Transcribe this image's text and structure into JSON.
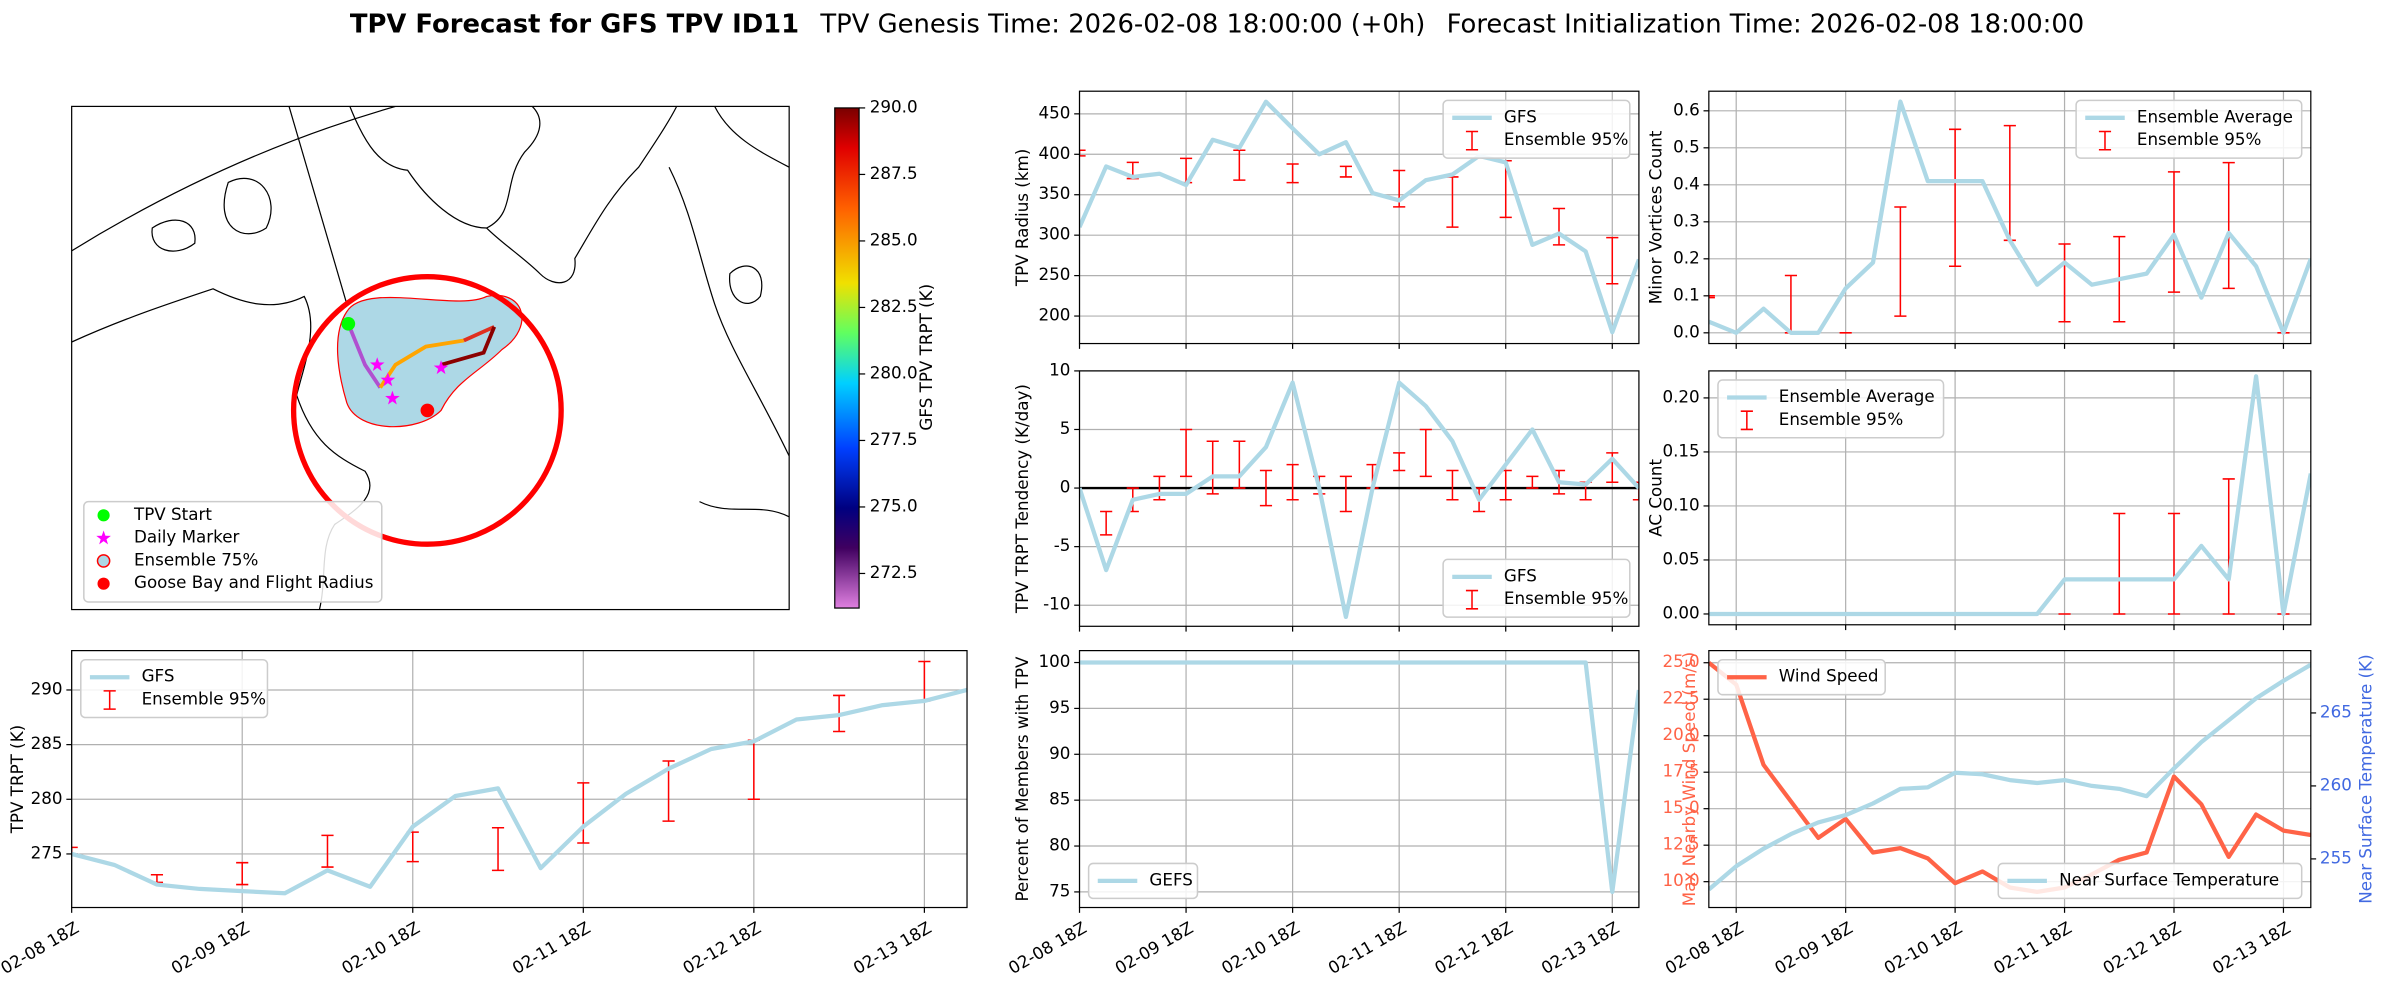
{
  "header": {
    "title": "TPV Forecast for GFS TPV ID11",
    "genesis": "TPV Genesis Time: 2026-02-08 18:00:00 (+0h)",
    "init": "Forecast Initialization Time: 2026-02-08 18:00:00"
  },
  "map": {
    "legend": [
      "TPV Start",
      "Daily Marker",
      "Ensemble 75%",
      "Goose Bay and Flight Radius"
    ],
    "colorbar": {
      "label": "GFS TPV TRPT (K)",
      "lim": [
        271.2,
        290
      ],
      "ticks": [
        272.5,
        {
          "value": 275,
          "label": "275.0"
        },
        277.5,
        {
          "value": 280,
          "label": "280.0"
        },
        282.5,
        {
          "value": 285,
          "label": "285.0"
        },
        287.5,
        {
          "value": 290,
          "label": "290.0"
        }
      ]
    }
  },
  "chart_data": [
    {
      "type": "line",
      "ylabel": "TPV Radius (km)",
      "x": [
        0,
        6,
        12,
        18,
        24,
        30,
        36,
        42,
        48,
        54,
        60,
        66,
        72,
        78,
        84,
        90,
        96,
        102,
        108,
        114,
        120,
        126
      ],
      "xlim": [
        0,
        126
      ],
      "xticks": [
        0,
        24,
        48,
        72,
        96,
        120
      ],
      "ylim": [
        166,
        478
      ],
      "yticks": [
        200,
        250,
        300,
        350,
        400,
        450
      ],
      "grid": true,
      "legend": "upper right",
      "series": [
        {
          "name": "GFS",
          "color": "#add8e6",
          "values": [
            310,
            385,
            372,
            376,
            362,
            418,
            408,
            465,
            432,
            400,
            415,
            352,
            343,
            368,
            375,
            398,
            390,
            288,
            302,
            280,
            180,
            270
          ]
        }
      ],
      "errorbars": [
        {
          "name": "Ensemble 95%",
          "color": "#ff0000",
          "low": [
            398,
            null,
            370,
            null,
            365,
            null,
            368,
            null,
            365,
            null,
            372,
            null,
            335,
            null,
            310,
            null,
            322,
            null,
            288,
            null,
            240,
            null
          ],
          "high": [
            405,
            null,
            390,
            null,
            395,
            null,
            405,
            null,
            388,
            null,
            385,
            null,
            380,
            null,
            372,
            null,
            392,
            null,
            333,
            null,
            297,
            null
          ]
        }
      ]
    },
    {
      "type": "line",
      "ylabel": "TPV TRPT Tendency (K/day)",
      "x": [
        0,
        6,
        12,
        18,
        24,
        30,
        36,
        42,
        48,
        54,
        60,
        66,
        72,
        78,
        84,
        90,
        96,
        102,
        108,
        114,
        120,
        126
      ],
      "xlim": [
        0,
        126
      ],
      "xticks": [
        0,
        24,
        48,
        72,
        96,
        120
      ],
      "ylim": [
        -11.8,
        10
      ],
      "yticks": [
        -10,
        -5,
        0,
        5,
        10
      ],
      "grid": true,
      "legend": "lower right",
      "reference_line": 0,
      "series": [
        {
          "name": "GFS",
          "color": "#add8e6",
          "values": [
            0,
            -7,
            -1,
            -0.5,
            -0.5,
            1,
            1,
            3.5,
            9,
            0,
            -11,
            0,
            9,
            7,
            4,
            -1,
            2,
            5,
            0.5,
            0.3,
            2.5,
            0
          ]
        }
      ],
      "errorbars": [
        {
          "name": "Ensemble 95%",
          "color": "#ff0000",
          "low": [
            null,
            -4,
            -2,
            -1,
            1,
            -0.5,
            0,
            -1.5,
            -1,
            -0.5,
            -2,
            0,
            1.5,
            1,
            -1,
            -2,
            -1,
            0,
            -0.5,
            -1,
            0.5,
            -1
          ],
          "high": [
            null,
            -2,
            0,
            1,
            5,
            4,
            4,
            1.5,
            2,
            1,
            1,
            2,
            3,
            5,
            1.5,
            0,
            1.5,
            1,
            1.5,
            0.5,
            3,
            0.5
          ]
        }
      ]
    },
    {
      "type": "line",
      "ylabel": "TPV TRPT (K)",
      "x": [
        0,
        6,
        12,
        18,
        24,
        30,
        36,
        42,
        48,
        54,
        60,
        66,
        72,
        78,
        84,
        90,
        96,
        102,
        108,
        114,
        120,
        126
      ],
      "xlim": [
        0,
        126
      ],
      "xticks": [
        {
          "value": 0,
          "label": "02-08 18Z"
        },
        {
          "value": 24,
          "label": "02-09 18Z"
        },
        {
          "value": 48,
          "label": "02-10 18Z"
        },
        {
          "value": 72,
          "label": "02-11 18Z"
        },
        {
          "value": 96,
          "label": "02-12 18Z"
        },
        {
          "value": 120,
          "label": "02-13 18Z"
        }
      ],
      "ylim": [
        270.1,
        293.6
      ],
      "yticks": [
        275,
        280,
        285,
        290
      ],
      "grid": true,
      "legend": "upper left",
      "series": [
        {
          "name": "GFS",
          "color": "#add8e6",
          "values": [
            275,
            274,
            272.2,
            271.8,
            271.6,
            271.4,
            273.5,
            272,
            277.5,
            280.3,
            281,
            273.7,
            277.5,
            280.5,
            282.8,
            284.6,
            285.3,
            287.3,
            287.7,
            288.6,
            289,
            290
          ]
        }
      ],
      "errorbars": [
        {
          "name": "Ensemble 95%",
          "color": "#ff0000",
          "low": [
            275,
            null,
            272.4,
            null,
            272.2,
            null,
            273.8,
            null,
            274.3,
            null,
            273.5,
            null,
            276,
            null,
            278,
            null,
            280,
            null,
            286.2,
            null,
            289,
            null
          ],
          "high": [
            275.6,
            null,
            273.1,
            null,
            274.2,
            null,
            276.7,
            null,
            277,
            null,
            277.4,
            null,
            281.5,
            null,
            283.5,
            null,
            285.4,
            null,
            289.5,
            null,
            292.6,
            null
          ]
        }
      ]
    },
    {
      "type": "line",
      "ylabel": "Minor Vortices Count",
      "x": [
        -6,
        0,
        6,
        12,
        18,
        24,
        30,
        36,
        42,
        48,
        54,
        60,
        66,
        72,
        78,
        84,
        90,
        96,
        102,
        108,
        114,
        120,
        126
      ],
      "xlim": [
        -6,
        126
      ],
      "xticks": [
        0,
        24,
        48,
        72,
        96,
        120
      ],
      "ylim": [
        -0.029,
        0.653
      ],
      "yticks": [
        {
          "value": 0,
          "label": "0.0"
        },
        0.1,
        0.2,
        0.3,
        0.4,
        0.5,
        0.6
      ],
      "grid": true,
      "legend": "upper right",
      "series": [
        {
          "name": "Ensemble Average",
          "color": "#add8e6",
          "values": [
            0.03,
            0,
            0.065,
            0,
            0,
            0.12,
            0.19,
            0.625,
            0.41,
            0.41,
            0.41,
            0.25,
            0.13,
            0.19,
            0.13,
            0.145,
            0.16,
            0.265,
            0.095,
            0.27,
            0.18,
            0,
            0.2
          ]
        }
      ],
      "errorbars": [
        {
          "name": "Ensemble 95%",
          "color": "#ff0000",
          "low": [
            0.095,
            null,
            null,
            0,
            null,
            0,
            null,
            0.045,
            null,
            0.18,
            null,
            0.25,
            null,
            0.03,
            null,
            0.03,
            null,
            0.11,
            null,
            0.12,
            null,
            0,
            null
          ],
          "high": [
            0.1,
            null,
            null,
            0.155,
            null,
            0,
            null,
            0.34,
            null,
            0.55,
            null,
            0.56,
            null,
            0.24,
            null,
            0.26,
            null,
            0.435,
            null,
            0.46,
            null,
            0,
            null
          ]
        }
      ]
    },
    {
      "type": "line",
      "ylabel": "AC Count",
      "x": [
        -6,
        0,
        6,
        12,
        18,
        24,
        30,
        36,
        42,
        48,
        54,
        60,
        66,
        72,
        78,
        84,
        90,
        96,
        102,
        108,
        114,
        120,
        126
      ],
      "xlim": [
        -6,
        126
      ],
      "xticks": [
        0,
        24,
        48,
        72,
        96,
        120
      ],
      "ylim": [
        -0.01,
        0.225
      ],
      "yticks": [
        {
          "value": 0,
          "label": "0.00"
        },
        {
          "value": 0.05,
          "label": "0.05"
        },
        {
          "value": 0.1,
          "label": "0.10"
        },
        {
          "value": 0.15,
          "label": "0.15"
        },
        {
          "value": 0.2,
          "label": "0.20"
        }
      ],
      "grid": true,
      "legend": "upper left",
      "series": [
        {
          "name": "Ensemble Average",
          "color": "#add8e6",
          "values": [
            0,
            0,
            0,
            0,
            0,
            0,
            0,
            0,
            0,
            0,
            0,
            0,
            0,
            0.032,
            0.032,
            0.032,
            0.032,
            0.032,
            0.063,
            0.032,
            0.22,
            0,
            0.13
          ]
        }
      ],
      "errorbars": [
        {
          "name": "Ensemble 95%",
          "color": "#ff0000",
          "low": [
            null,
            0,
            null,
            0,
            null,
            0,
            null,
            0,
            null,
            0,
            null,
            0,
            null,
            0,
            null,
            0,
            null,
            0,
            null,
            0,
            null,
            0,
            null
          ],
          "high": [
            null,
            0,
            null,
            0,
            null,
            0,
            null,
            0,
            null,
            0,
            null,
            0,
            null,
            0,
            null,
            0.093,
            null,
            0.093,
            null,
            0.125,
            null,
            0,
            null
          ]
        }
      ]
    },
    {
      "type": "line",
      "ylabel": "Max Nearby Wind Speed (m/s)",
      "ylabel_color": "#ff6347",
      "y2label": "Near Surface Temperature (K)",
      "y2label_color": "#4169e1",
      "x": [
        -6,
        0,
        6,
        12,
        18,
        24,
        30,
        36,
        42,
        48,
        54,
        60,
        66,
        72,
        78,
        84,
        90,
        96,
        102,
        108,
        114,
        120,
        126
      ],
      "xlim": [
        -6,
        126
      ],
      "xticks": [
        {
          "value": 0,
          "label": "02-08 18Z"
        },
        {
          "value": 24,
          "label": "02-09 18Z"
        },
        {
          "value": 48,
          "label": "02-10 18Z"
        },
        {
          "value": 72,
          "label": "02-11 18Z"
        },
        {
          "value": 96,
          "label": "02-12 18Z"
        },
        {
          "value": 120,
          "label": "02-13 18Z"
        }
      ],
      "ylim": [
        8.23,
        25.83
      ],
      "yticks": [
        {
          "value": 10,
          "label": "10.0"
        },
        12.5,
        {
          "value": 15,
          "label": "15.0"
        },
        17.5,
        {
          "value": 20,
          "label": "20.0"
        },
        22.5,
        {
          "value": 25,
          "label": "25.0"
        }
      ],
      "y2lim": [
        251.67,
        269.27
      ],
      "y2ticks": [
        255,
        260,
        265
      ],
      "grid": true,
      "legend": "upper left",
      "legend2": "lower right",
      "series": [
        {
          "name": "Wind Speed",
          "color": "#ff6347",
          "values": [
            25,
            23.5,
            18,
            15.5,
            13,
            14.3,
            12,
            12.3,
            11.6,
            9.9,
            10.7,
            9.6,
            9.3,
            9.6,
            10.5,
            11.5,
            12,
            17.2,
            15.3,
            11.7,
            14.6,
            13.5,
            13.2
          ]
        },
        {
          "name": "Near Surface Temperature",
          "color": "#add8e6",
          "axis": "y2",
          "values": [
            252.9,
            254.5,
            255.7,
            256.7,
            257.5,
            258,
            258.8,
            259.8,
            259.9,
            260.9,
            260.8,
            260.4,
            260.2,
            260.4,
            260,
            259.8,
            259.3,
            261.2,
            263,
            264.5,
            266,
            267.2,
            268.3
          ]
        }
      ]
    },
    {
      "type": "line",
      "ylabel": "Percent of Members with TPV",
      "x": [
        0,
        6,
        12,
        18,
        24,
        30,
        36,
        42,
        48,
        54,
        60,
        66,
        72,
        78,
        84,
        90,
        96,
        102,
        108,
        114,
        120,
        126
      ],
      "xlim": [
        0,
        126
      ],
      "xticks": [
        {
          "value": 0,
          "label": "02-08 18Z"
        },
        {
          "value": 24,
          "label": "02-09 18Z"
        },
        {
          "value": 48,
          "label": "02-10 18Z"
        },
        {
          "value": 72,
          "label": "02-11 18Z"
        },
        {
          "value": 96,
          "label": "02-12 18Z"
        },
        {
          "value": 120,
          "label": "02-13 18Z"
        }
      ],
      "ylim": [
        73.3,
        101.3
      ],
      "yticks": [
        75,
        80,
        85,
        90,
        95,
        100
      ],
      "grid": true,
      "legend": "lower left",
      "series": [
        {
          "name": "GEFS",
          "color": "#add8e6",
          "values": [
            100,
            100,
            100,
            100,
            100,
            100,
            100,
            100,
            100,
            100,
            100,
            100,
            100,
            100,
            100,
            100,
            100,
            100,
            100,
            100,
            75,
            97
          ]
        }
      ]
    }
  ]
}
